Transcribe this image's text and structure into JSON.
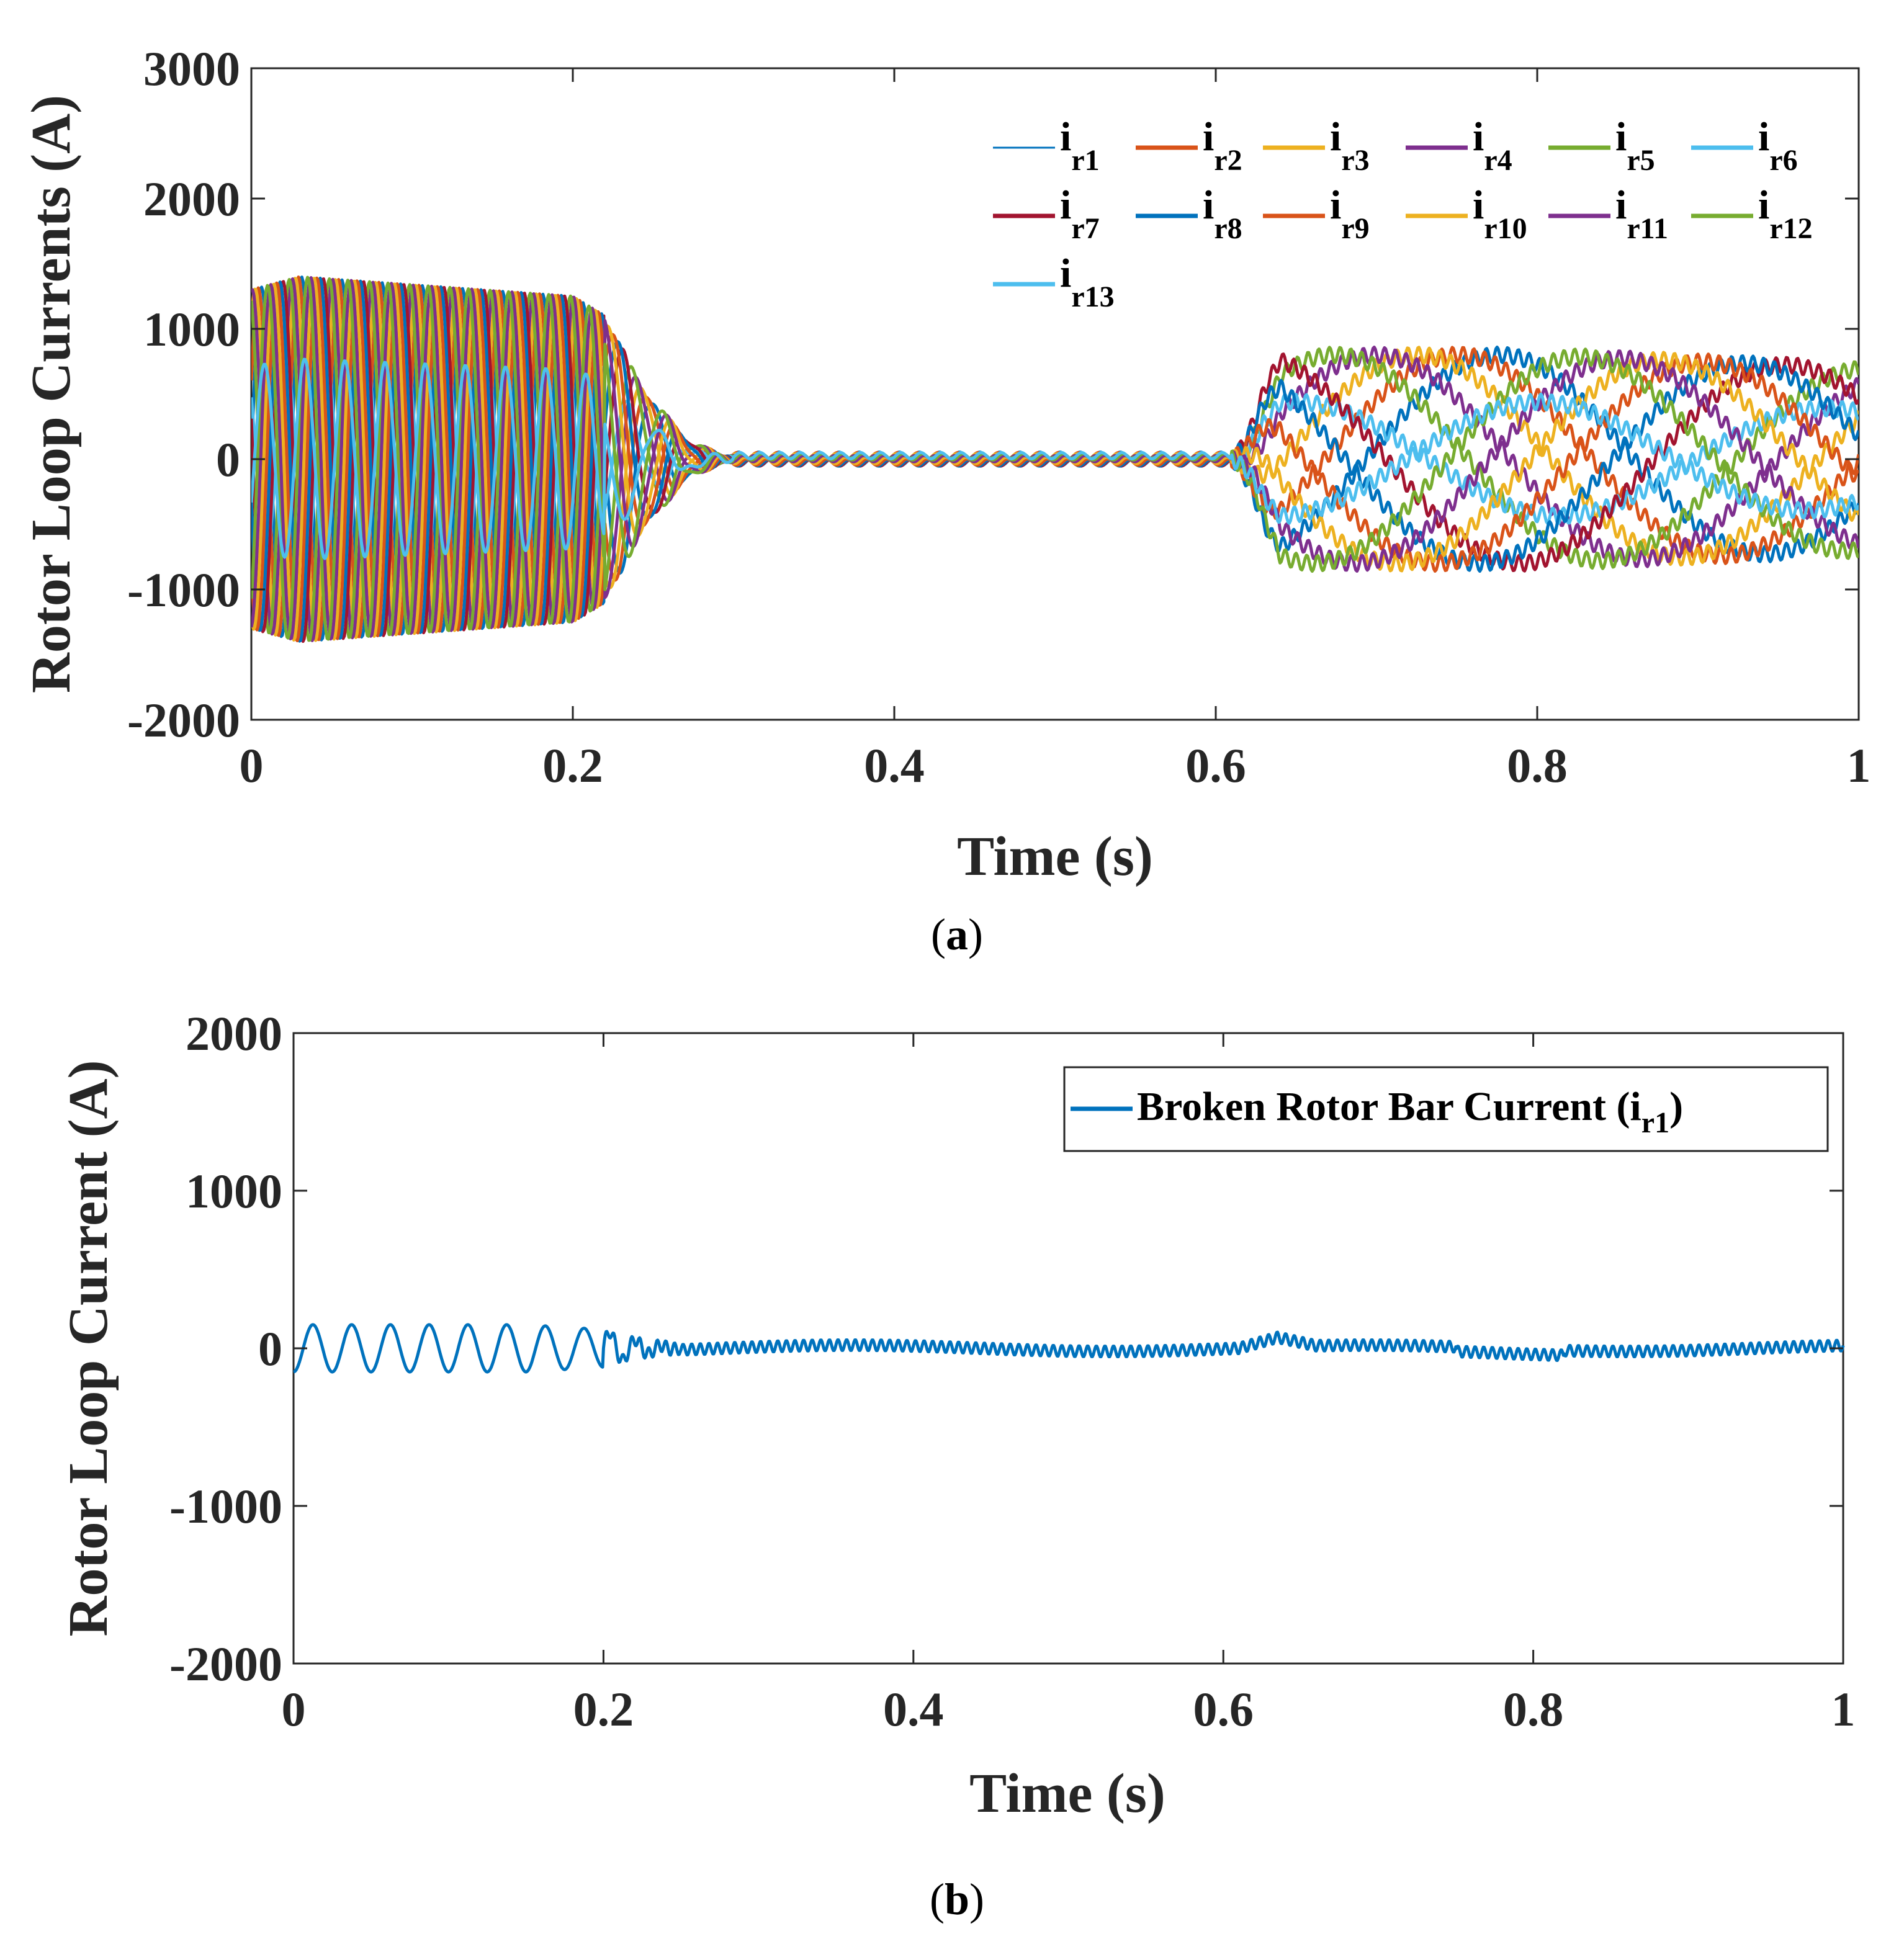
{
  "chart_data": [
    {
      "id": "a",
      "type": "line",
      "caption_letter": "a",
      "xlabel": "Time (s)",
      "ylabel": "Rotor Loop Currents (A)",
      "xlim": [
        0,
        1
      ],
      "ylim": [
        -2000,
        3000
      ],
      "xticks": [
        0,
        0.2,
        0.4,
        0.6,
        0.8,
        1
      ],
      "xtick_labels": [
        "0",
        "0.2",
        "0.4",
        "0.6",
        "0.8",
        "1"
      ],
      "yticks": [
        -2000,
        -1000,
        0,
        1000,
        2000,
        3000
      ],
      "ytick_labels": [
        "-2000",
        "-1000",
        "0",
        "1000",
        "2000",
        "3000"
      ],
      "legend_position": "top-right",
      "series": [
        {
          "name": "i",
          "sub": "r1",
          "color": "#0072BD",
          "phase_index": 0
        },
        {
          "name": "i",
          "sub": "r2",
          "color": "#D95319",
          "phase_index": 1
        },
        {
          "name": "i",
          "sub": "r3",
          "color": "#EDB120",
          "phase_index": 2
        },
        {
          "name": "i",
          "sub": "r4",
          "color": "#7E2F8E",
          "phase_index": 3
        },
        {
          "name": "i",
          "sub": "r5",
          "color": "#77AC30",
          "phase_index": 4
        },
        {
          "name": "i",
          "sub": "r6",
          "color": "#4DBEEE",
          "phase_index": 5
        },
        {
          "name": "i",
          "sub": "r7",
          "color": "#A2142F",
          "phase_index": 6
        },
        {
          "name": "i",
          "sub": "r8",
          "color": "#0072BD",
          "phase_index": 7
        },
        {
          "name": "i",
          "sub": "r9",
          "color": "#D95319",
          "phase_index": 8
        },
        {
          "name": "i",
          "sub": "r10",
          "color": "#EDB120",
          "phase_index": 9
        },
        {
          "name": "i",
          "sub": "r11",
          "color": "#7E2F8E",
          "phase_index": 10
        },
        {
          "name": "i",
          "sub": "r12",
          "color": "#77AC30",
          "phase_index": 11
        },
        {
          "name": "i",
          "sub": "r13",
          "color": "#4DBEEE",
          "phase_index": 12
        }
      ],
      "envelope": {
        "description_points_t": [
          0,
          0.03,
          0.2,
          0.22,
          0.25,
          0.3,
          0.6,
          0.63,
          0.8,
          1.0
        ],
        "amplitude_A": [
          1300,
          1400,
          1250,
          1100,
          700,
          100,
          60,
          800,
          800,
          700
        ]
      }
    },
    {
      "id": "b",
      "type": "line",
      "caption_letter": "b",
      "xlabel": "Time (s)",
      "ylabel": "Rotor Loop Current (A)",
      "xlim": [
        0,
        1
      ],
      "ylim": [
        -2000,
        2000
      ],
      "xticks": [
        0,
        0.2,
        0.4,
        0.6,
        0.8,
        1
      ],
      "xtick_labels": [
        "0",
        "0.2",
        "0.4",
        "0.6",
        "0.8",
        "1"
      ],
      "yticks": [
        -2000,
        -1000,
        0,
        1000,
        2000
      ],
      "ytick_labels": [
        "-2000",
        "-1000",
        "0",
        "1000",
        "2000"
      ],
      "legend_position": "top-right",
      "series": [
        {
          "name": "Broken Rotor Bar Current (i",
          "sub": "r1",
          "suffix": ")",
          "color": "#0072BD"
        }
      ],
      "envelope": {
        "description_points_t": [
          0,
          0.15,
          0.2,
          0.25,
          0.6,
          0.63,
          1.0
        ],
        "amplitude_A": [
          150,
          150,
          120,
          60,
          40,
          60,
          60
        ]
      }
    }
  ],
  "captions": {
    "a_open": "(",
    "a_letter": "a",
    "a_close": ")",
    "b_open": "(",
    "b_letter": "b",
    "b_close": ")"
  }
}
